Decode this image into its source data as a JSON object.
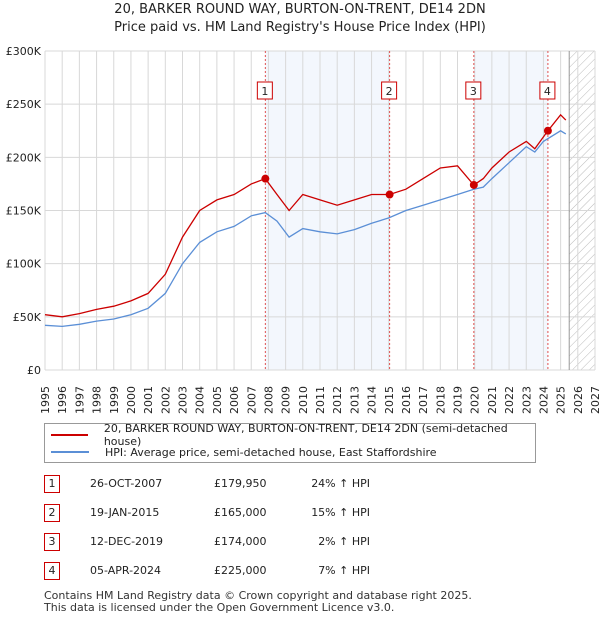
{
  "header": {
    "title": "20, BARKER ROUND WAY, BURTON-ON-TRENT, DE14 2DN",
    "subtitle": "Price paid vs. HM Land Registry's House Price Index (HPI)"
  },
  "chart_data": {
    "type": "line",
    "title": "20, BARKER ROUND WAY, BURTON-ON-TRENT, DE14 2DN",
    "xlabel": "",
    "ylabel": "",
    "xlim": [
      1995,
      2027
    ],
    "ylim": [
      0,
      300000
    ],
    "yticks": [
      {
        "v": 0,
        "label": "£0"
      },
      {
        "v": 50000,
        "label": "£50K"
      },
      {
        "v": 100000,
        "label": "£100K"
      },
      {
        "v": 150000,
        "label": "£150K"
      },
      {
        "v": 200000,
        "label": "£200K"
      },
      {
        "v": 250000,
        "label": "£250K"
      },
      {
        "v": 300000,
        "label": "£300K"
      }
    ],
    "xticks": [
      "1995",
      "1996",
      "1997",
      "1998",
      "1999",
      "2000",
      "2001",
      "2002",
      "2003",
      "2004",
      "2005",
      "2006",
      "2007",
      "2008",
      "2009",
      "2010",
      "2011",
      "2012",
      "2013",
      "2014",
      "2015",
      "2016",
      "2017",
      "2018",
      "2019",
      "2020",
      "2021",
      "2022",
      "2023",
      "2024",
      "2025",
      "2026",
      "2027"
    ],
    "grid": true,
    "forecast_from": 2025.5,
    "series": [
      {
        "name": "20, BARKER ROUND WAY, BURTON-ON-TRENT, DE14 2DN (semi-detached house)",
        "color": "#cc0000",
        "x": [
          1995,
          1996,
          1997,
          1998,
          1999,
          2000,
          2001,
          2002,
          2003,
          2004,
          2005,
          2006,
          2007,
          2007.82,
          2008.5,
          2009.2,
          2010,
          2011,
          2012,
          2013,
          2014,
          2015.05,
          2016,
          2017,
          2018,
          2019,
          2019.95,
          2020.5,
          2021,
          2022,
          2023,
          2023.5,
          2024.26,
          2025,
          2025.3
        ],
        "values": [
          52000,
          50000,
          53000,
          57000,
          60000,
          65000,
          72000,
          90000,
          125000,
          150000,
          160000,
          165000,
          175000,
          179950,
          165000,
          150000,
          165000,
          160000,
          155000,
          160000,
          165000,
          165000,
          170000,
          180000,
          190000,
          192000,
          174000,
          180000,
          190000,
          205000,
          215000,
          208000,
          225000,
          240000,
          235000
        ]
      },
      {
        "name": "HPI: Average price, semi-detached house, East Staffordshire",
        "color": "#5b8fd6",
        "x": [
          1995,
          1996,
          1997,
          1998,
          1999,
          2000,
          2001,
          2002,
          2003,
          2004,
          2005,
          2006,
          2007,
          2007.82,
          2008.5,
          2009.2,
          2010,
          2011,
          2012,
          2013,
          2014,
          2015,
          2016,
          2017,
          2018,
          2019,
          2019.95,
          2020.5,
          2021,
          2022,
          2023,
          2023.5,
          2024,
          2025,
          2025.3
        ],
        "values": [
          42000,
          41000,
          43000,
          46000,
          48000,
          52000,
          58000,
          72000,
          100000,
          120000,
          130000,
          135000,
          145000,
          148000,
          140000,
          125000,
          133000,
          130000,
          128000,
          132000,
          138000,
          143000,
          150000,
          155000,
          160000,
          165000,
          170000,
          172000,
          180000,
          195000,
          210000,
          205000,
          215000,
          225000,
          222000
        ]
      }
    ],
    "sales": [
      {
        "label": "1",
        "x": 2007.82,
        "value": 179950
      },
      {
        "label": "2",
        "x": 2015.05,
        "value": 165000
      },
      {
        "label": "3",
        "x": 2019.95,
        "value": 174000
      },
      {
        "label": "4",
        "x": 2024.26,
        "value": 225000
      }
    ]
  },
  "legend": {
    "red": "20, BARKER ROUND WAY, BURTON-ON-TRENT, DE14 2DN (semi-detached house)",
    "blue": "HPI: Average price, semi-detached house, East Staffordshire"
  },
  "table": [
    {
      "n": "1",
      "date": "26-OCT-2007",
      "price": "£179,950",
      "hpi": "24% ↑ HPI"
    },
    {
      "n": "2",
      "date": "19-JAN-2015",
      "price": "£165,000",
      "hpi": "15% ↑ HPI"
    },
    {
      "n": "3",
      "date": "12-DEC-2019",
      "price": "£174,000",
      "hpi": "2% ↑ HPI"
    },
    {
      "n": "4",
      "date": "05-APR-2024",
      "price": "£225,000",
      "hpi": "7% ↑ HPI"
    }
  ],
  "footer": {
    "line1": "Contains HM Land Registry data © Crown copyright and database right 2025.",
    "line2": "This data is licensed under the Open Government Licence v3.0."
  }
}
